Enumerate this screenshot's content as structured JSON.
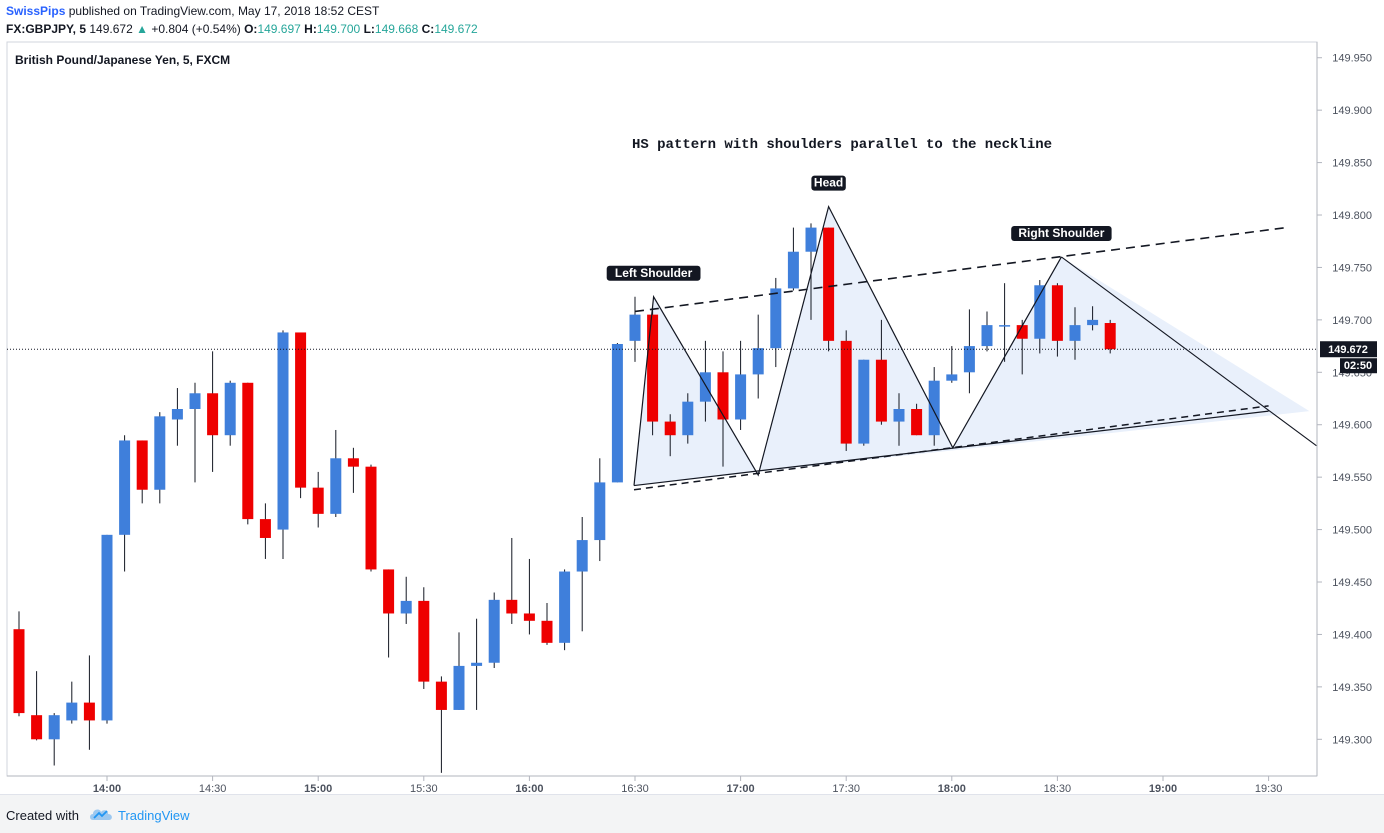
{
  "header": {
    "author": "SwissPips",
    "published": "published on TradingView.com, May 17, 2018 18:52 CEST",
    "symbol": "FX:GBPJPY, 5",
    "last": "149.672",
    "change": "+0.804 (+0.54%)",
    "open_label": "O:",
    "open": "149.697",
    "high_label": "H:",
    "high": "149.700",
    "low_label": "L:",
    "low": "149.668",
    "close_label": "C:",
    "close": "149.672"
  },
  "footer": {
    "created_with": "Created with",
    "brand": "TradingView"
  },
  "colors": {
    "up": "#3f7fdb",
    "down": "#ee0000",
    "wick": "#131722",
    "pattern_fill": "#e9f0fb"
  },
  "chart_data": {
    "type": "candlestick",
    "title": "British Pound/Japanese Yen, 5, FXCM",
    "annotation_title": "HS pattern with shoulders parallel to the neckline",
    "ylim": [
      149.265,
      149.965
    ],
    "y_ticks": [
      "149.950",
      "149.900",
      "149.850",
      "149.800",
      "149.750",
      "149.700",
      "149.650",
      "149.600",
      "149.550",
      "149.500",
      "149.450",
      "149.400",
      "149.350",
      "149.300"
    ],
    "x_ticks": [
      "14:00",
      "14:30",
      "15:00",
      "15:30",
      "16:00",
      "16:30",
      "17:00",
      "17:30",
      "18:00",
      "18:30",
      "19:00",
      "19:30"
    ],
    "price_label": "149.672",
    "countdown_label": "02:50",
    "bar_interval_minutes": 5,
    "first_bar_time": "13:35",
    "candles": [
      {
        "o": 149.405,
        "h": 149.422,
        "l": 149.322,
        "c": 149.325
      },
      {
        "o": 149.323,
        "h": 149.365,
        "l": 149.299,
        "c": 149.3
      },
      {
        "o": 149.3,
        "h": 149.325,
        "l": 149.275,
        "c": 149.323
      },
      {
        "o": 149.318,
        "h": 149.355,
        "l": 149.315,
        "c": 149.335
      },
      {
        "o": 149.335,
        "h": 149.38,
        "l": 149.29,
        "c": 149.318
      },
      {
        "o": 149.318,
        "h": 149.495,
        "l": 149.315,
        "c": 149.495
      },
      {
        "o": 149.495,
        "h": 149.59,
        "l": 149.46,
        "c": 149.585
      },
      {
        "o": 149.585,
        "h": 149.585,
        "l": 149.525,
        "c": 149.538
      },
      {
        "o": 149.538,
        "h": 149.612,
        "l": 149.525,
        "c": 149.608
      },
      {
        "o": 149.605,
        "h": 149.635,
        "l": 149.58,
        "c": 149.615
      },
      {
        "o": 149.615,
        "h": 149.64,
        "l": 149.545,
        "c": 149.63
      },
      {
        "o": 149.63,
        "h": 149.67,
        "l": 149.555,
        "c": 149.59
      },
      {
        "o": 149.59,
        "h": 149.642,
        "l": 149.58,
        "c": 149.64
      },
      {
        "o": 149.64,
        "h": 149.64,
        "l": 149.505,
        "c": 149.51
      },
      {
        "o": 149.51,
        "h": 149.525,
        "l": 149.472,
        "c": 149.492
      },
      {
        "o": 149.5,
        "h": 149.69,
        "l": 149.472,
        "c": 149.688
      },
      {
        "o": 149.688,
        "h": 149.688,
        "l": 149.53,
        "c": 149.54
      },
      {
        "o": 149.54,
        "h": 149.555,
        "l": 149.502,
        "c": 149.515
      },
      {
        "o": 149.515,
        "h": 149.595,
        "l": 149.512,
        "c": 149.568
      },
      {
        "o": 149.568,
        "h": 149.578,
        "l": 149.535,
        "c": 149.56
      },
      {
        "o": 149.56,
        "h": 149.562,
        "l": 149.46,
        "c": 149.462
      },
      {
        "o": 149.462,
        "h": 149.462,
        "l": 149.378,
        "c": 149.42
      },
      {
        "o": 149.42,
        "h": 149.455,
        "l": 149.41,
        "c": 149.432
      },
      {
        "o": 149.432,
        "h": 149.445,
        "l": 149.348,
        "c": 149.355
      },
      {
        "o": 149.355,
        "h": 149.36,
        "l": 149.268,
        "c": 149.328
      },
      {
        "o": 149.328,
        "h": 149.402,
        "l": 149.328,
        "c": 149.37
      },
      {
        "o": 149.37,
        "h": 149.415,
        "l": 149.328,
        "c": 149.373
      },
      {
        "o": 149.373,
        "h": 149.44,
        "l": 149.368,
        "c": 149.433
      },
      {
        "o": 149.433,
        "h": 149.492,
        "l": 149.41,
        "c": 149.42
      },
      {
        "o": 149.42,
        "h": 149.472,
        "l": 149.4,
        "c": 149.413
      },
      {
        "o": 149.413,
        "h": 149.43,
        "l": 149.39,
        "c": 149.392
      },
      {
        "o": 149.392,
        "h": 149.462,
        "l": 149.385,
        "c": 149.46
      },
      {
        "o": 149.46,
        "h": 149.512,
        "l": 149.403,
        "c": 149.49
      },
      {
        "o": 149.49,
        "h": 149.568,
        "l": 149.47,
        "c": 149.545
      },
      {
        "o": 149.545,
        "h": 149.678,
        "l": 149.545,
        "c": 149.677
      },
      {
        "o": 149.68,
        "h": 149.722,
        "l": 149.66,
        "c": 149.705
      },
      {
        "o": 149.705,
        "h": 149.712,
        "l": 149.59,
        "c": 149.603
      },
      {
        "o": 149.603,
        "h": 149.61,
        "l": 149.57,
        "c": 149.59
      },
      {
        "o": 149.59,
        "h": 149.63,
        "l": 149.582,
        "c": 149.622
      },
      {
        "o": 149.622,
        "h": 149.68,
        "l": 149.603,
        "c": 149.65
      },
      {
        "o": 149.65,
        "h": 149.67,
        "l": 149.56,
        "c": 149.605
      },
      {
        "o": 149.605,
        "h": 149.68,
        "l": 149.595,
        "c": 149.648
      },
      {
        "o": 149.648,
        "h": 149.705,
        "l": 149.625,
        "c": 149.673
      },
      {
        "o": 149.673,
        "h": 149.74,
        "l": 149.655,
        "c": 149.73
      },
      {
        "o": 149.73,
        "h": 149.788,
        "l": 149.728,
        "c": 149.765
      },
      {
        "o": 149.765,
        "h": 149.792,
        "l": 149.7,
        "c": 149.788
      },
      {
        "o": 149.788,
        "h": 149.788,
        "l": 149.67,
        "c": 149.68
      },
      {
        "o": 149.68,
        "h": 149.69,
        "l": 149.575,
        "c": 149.582
      },
      {
        "o": 149.582,
        "h": 149.662,
        "l": 149.58,
        "c": 149.662
      },
      {
        "o": 149.662,
        "h": 149.7,
        "l": 149.6,
        "c": 149.603
      },
      {
        "o": 149.603,
        "h": 149.63,
        "l": 149.58,
        "c": 149.615
      },
      {
        "o": 149.615,
        "h": 149.62,
        "l": 149.59,
        "c": 149.59
      },
      {
        "o": 149.59,
        "h": 149.655,
        "l": 149.58,
        "c": 149.642
      },
      {
        "o": 149.642,
        "h": 149.675,
        "l": 149.64,
        "c": 149.648
      },
      {
        "o": 149.65,
        "h": 149.71,
        "l": 149.63,
        "c": 149.675
      },
      {
        "o": 149.675,
        "h": 149.708,
        "l": 149.67,
        "c": 149.695
      },
      {
        "o": 149.695,
        "h": 149.735,
        "l": 149.66,
        "c": 149.695
      },
      {
        "o": 149.695,
        "h": 149.7,
        "l": 149.648,
        "c": 149.682
      },
      {
        "o": 149.682,
        "h": 149.738,
        "l": 149.668,
        "c": 149.733
      },
      {
        "o": 149.733,
        "h": 149.735,
        "l": 149.665,
        "c": 149.68
      },
      {
        "o": 149.68,
        "h": 149.712,
        "l": 149.662,
        "c": 149.695
      },
      {
        "o": 149.695,
        "h": 149.713,
        "l": 149.69,
        "c": 149.7
      },
      {
        "o": 149.697,
        "h": 149.7,
        "l": 149.668,
        "c": 149.672
      }
    ],
    "pattern_labels": [
      "Left Shoulder",
      "Head",
      "Right Shoulder"
    ]
  }
}
